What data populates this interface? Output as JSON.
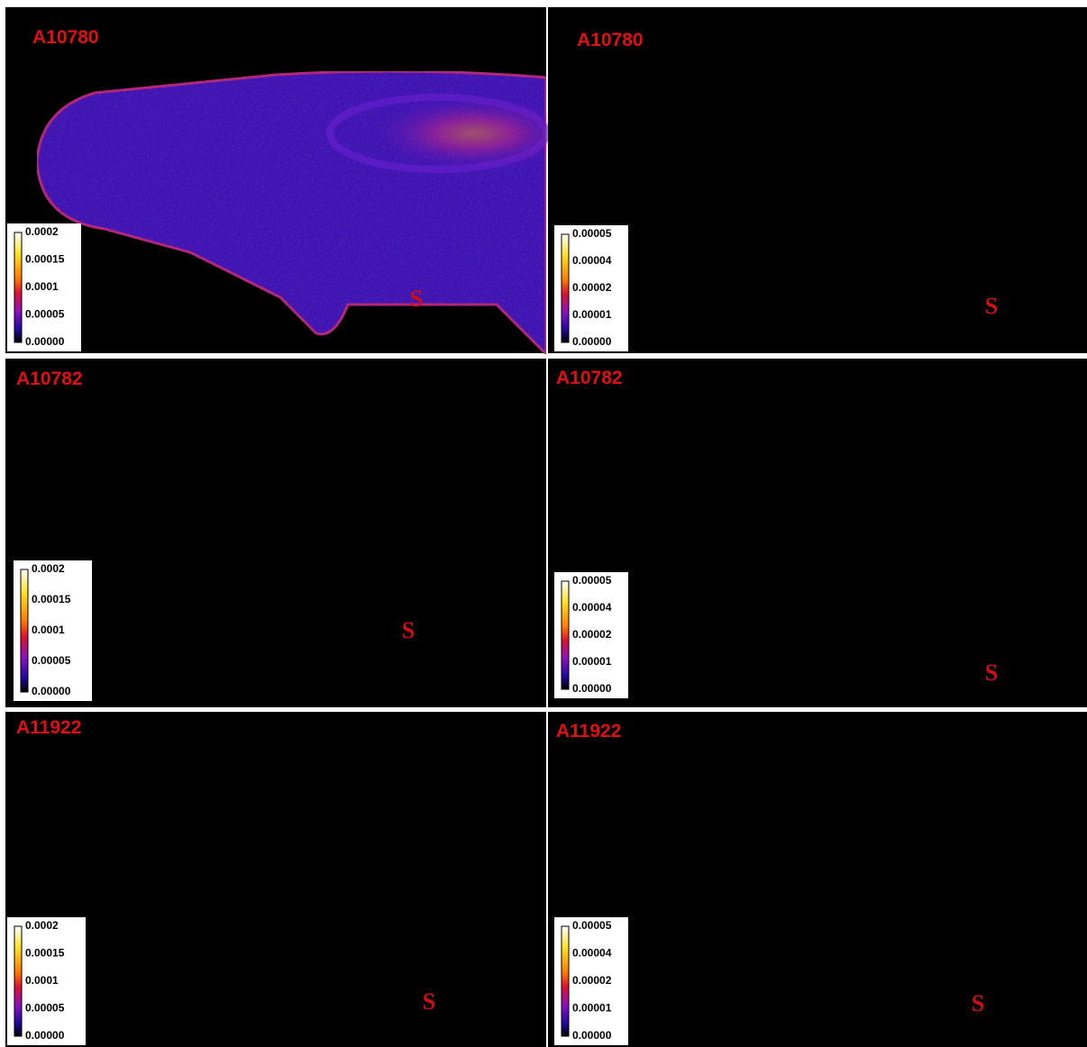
{
  "panels": [
    {
      "label": "A10780",
      "scale": [
        "0.0002",
        "0.00015",
        "0.0001",
        "0.00005",
        "0.00000"
      ],
      "marker": "S"
    },
    {
      "label": "A10780",
      "scale": [
        "0.00005",
        "0.00004",
        "0.00002",
        "0.00001",
        "0.00000"
      ],
      "marker": "S"
    },
    {
      "label": "A10782",
      "scale": [
        "0.0002",
        "0.00015",
        "0.0001",
        "0.00005",
        "0.00000"
      ],
      "marker": "S"
    },
    {
      "label": "A10782",
      "scale": [
        "0.00005",
        "0.00004",
        "0.00002",
        "0.00001",
        "0.00000"
      ],
      "marker": "S"
    },
    {
      "label": "A11922",
      "scale": [
        "0.0002",
        "0.00015",
        "0.0001",
        "0.00005",
        "0.00000"
      ],
      "marker": "S"
    },
    {
      "label": "A11922",
      "scale": [
        "0.00005",
        "0.00004",
        "0.00002",
        "0.00001",
        "0.00000"
      ],
      "marker": "S"
    }
  ]
}
